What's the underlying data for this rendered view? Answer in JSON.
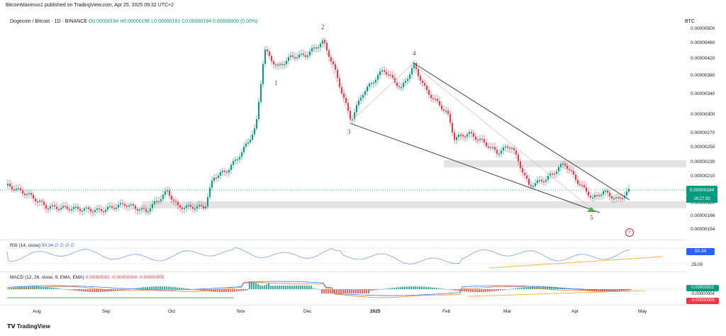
{
  "header": {
    "published": "BitcoinMaximus1 published on TradingView.com, Apr 25, 2025 09:32 UTC+2",
    "symbol": "Dogecoin / Bitcoin · 1D · BINANCE",
    "ohlc": "O0.00000194  H0.00000196  L0.00000191  C0.00000194  0.00000000 (0.00%)",
    "currency": "BTC"
  },
  "price_axis": {
    "ticks": [
      "0.00000500",
      "0.00000460",
      "0.00000420",
      "0.00000380",
      "0.00000340",
      "0.00000300",
      "0.00000270",
      "0.00000250",
      "0.00000230",
      "0.00000210",
      "0.00000180",
      "0.00000166",
      "0.00000154"
    ],
    "last_price": "0.00000194",
    "countdown": "16:27:30"
  },
  "waves": [
    "1",
    "2",
    "3",
    "4",
    "5"
  ],
  "rsi": {
    "label": "RSI (14, close)",
    "values": "50.34  ∅  ∅  ∅  ∅",
    "last": "50.34",
    "level": "25.00"
  },
  "macd": {
    "label": "MACD (12, 26, close, 9, EMA, EMA)",
    "values": "0.00000002  -0.00000004  -0.00000005",
    "tag_macd": "0.00000002",
    "tag_signal": "-0.00000004",
    "tag_hist": "-0.00000005"
  },
  "time_axis": [
    "Aug",
    "Sep",
    "Oct",
    "Nov",
    "Dec",
    "2025",
    "Feb",
    "Mar",
    "Apr",
    "May"
  ],
  "footer": {
    "brand": "TradingView"
  },
  "colors": {
    "up": "#089981",
    "down": "#f23645",
    "rsi": "#7e9fe0",
    "accent": "#2962ff"
  }
}
